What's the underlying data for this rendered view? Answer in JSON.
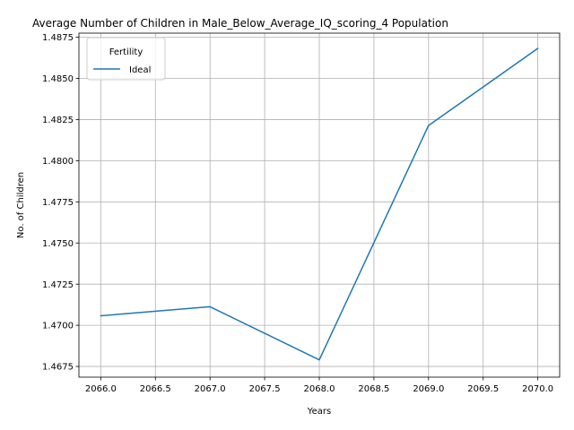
{
  "chart_data": {
    "type": "line",
    "title": "Average Number of Children in Male_Below_Average_IQ_scoring_4 Population",
    "xlabel": "Years",
    "ylabel": "No. of Children",
    "xlim": [
      2065.8,
      2070.2
    ],
    "ylim": [
      1.46685,
      1.48775
    ],
    "x_ticks": [
      2066.0,
      2066.5,
      2067.0,
      2067.5,
      2068.0,
      2068.5,
      2069.0,
      2069.5,
      2070.0
    ],
    "x_tick_labels": [
      "2066.0",
      "2066.5",
      "2067.0",
      "2067.5",
      "2068.0",
      "2068.5",
      "2069.0",
      "2069.5",
      "2070.0"
    ],
    "y_ticks": [
      1.4675,
      1.47,
      1.4725,
      1.475,
      1.4775,
      1.48,
      1.4825,
      1.485,
      1.4875
    ],
    "y_tick_labels": [
      "1.4675",
      "1.4700",
      "1.4725",
      "1.4750",
      "1.4775",
      "1.4800",
      "1.4825",
      "1.4850",
      "1.4875"
    ],
    "grid": true,
    "legend": {
      "title": "Fertility",
      "position": "top-left"
    },
    "series": [
      {
        "name": "Ideal",
        "color": "#1f77b4",
        "x": [
          2066,
          2067,
          2068,
          2069,
          2070
        ],
        "y": [
          1.47058,
          1.47113,
          1.4679,
          1.48214,
          1.48682
        ]
      }
    ]
  }
}
